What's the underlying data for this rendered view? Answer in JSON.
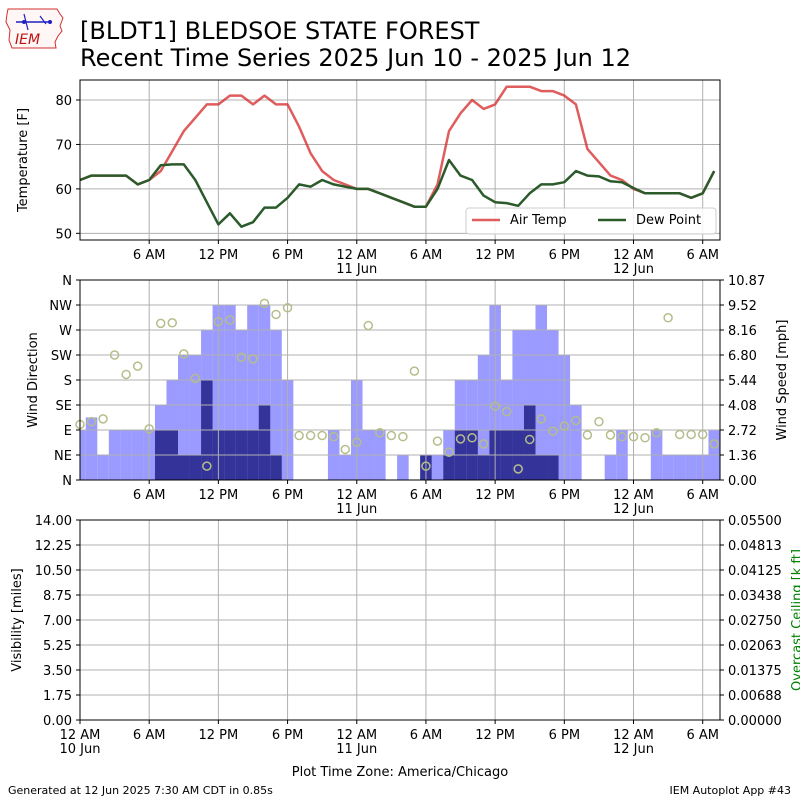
{
  "header": {
    "logo_text": "IEM",
    "title_line1": "[BLDT1] BLEDSOE STATE FOREST",
    "title_line2": "Recent Time Series 2025 Jun 10 - 2025 Jun 12"
  },
  "footer": {
    "generated": "Generated at 12 Jun 2025 7:30 AM CDT in 0.85s",
    "app": "IEM Autoplot App #43"
  },
  "colors": {
    "air_temp": "#d62728",
    "dew_point": "#2b5a2b",
    "wind_speed": "#9a9aff",
    "wind_gust_bar": "#33339a",
    "wind_dir_marker": "#b5bd8a",
    "ceiling_axis": "#008000",
    "grid": "#b0b0b0"
  },
  "chart_data": [
    {
      "type": "line",
      "ylabel": "Temperature [F]",
      "ylim": [
        48.5,
        84.5
      ],
      "yticks": [
        50,
        60,
        70,
        80
      ],
      "xlim": [
        0,
        55.5
      ],
      "xtick_hours": [
        6,
        12,
        18,
        24,
        30,
        36,
        42,
        48,
        54
      ],
      "xtick_labels": [
        "6 AM",
        "12 PM",
        "6 PM",
        "12 AM\n11 Jun",
        "6 AM",
        "12 PM",
        "6 PM",
        "12 AM\n12 Jun",
        "6 AM"
      ],
      "grid": true,
      "legend_position": "lower-right",
      "series": [
        {
          "name": "Air Temp",
          "values": [
            [
              0,
              62
            ],
            [
              1,
              63
            ],
            [
              2,
              63
            ],
            [
              3,
              63
            ],
            [
              4,
              63
            ],
            [
              5,
              61
            ],
            [
              6,
              62
            ],
            [
              7,
              64
            ],
            [
              8,
              68.5
            ],
            [
              9,
              73
            ],
            [
              10,
              76
            ],
            [
              11,
              79
            ],
            [
              12,
              79
            ],
            [
              13,
              81
            ],
            [
              14,
              81
            ],
            [
              15,
              79
            ],
            [
              16,
              81
            ],
            [
              17,
              79
            ],
            [
              18,
              79
            ],
            [
              19,
              74
            ],
            [
              20,
              68
            ],
            [
              21,
              64
            ],
            [
              22,
              62
            ],
            [
              23,
              61
            ],
            [
              24,
              60
            ],
            [
              25,
              60
            ],
            [
              26,
              59
            ],
            [
              27,
              58
            ],
            [
              28,
              57
            ],
            [
              29,
              56
            ],
            [
              30,
              56
            ],
            [
              31,
              61
            ],
            [
              32,
              73
            ],
            [
              33,
              77
            ],
            [
              34,
              80
            ],
            [
              35,
              78
            ],
            [
              36,
              79
            ],
            [
              37,
              83
            ],
            [
              38,
              83
            ],
            [
              39,
              83
            ],
            [
              40,
              82
            ],
            [
              41,
              82
            ],
            [
              42,
              81
            ],
            [
              43,
              79
            ],
            [
              44,
              69
            ],
            [
              45,
              66
            ],
            [
              46,
              63
            ],
            [
              47,
              62
            ],
            [
              48,
              60
            ],
            [
              49,
              59
            ],
            [
              50,
              59
            ],
            [
              51,
              59
            ],
            [
              52,
              59
            ],
            [
              53,
              58
            ],
            [
              54,
              59
            ],
            [
              55,
              64
            ]
          ]
        },
        {
          "name": "Dew Point",
          "values": [
            [
              0,
              62
            ],
            [
              1,
              63
            ],
            [
              2,
              63
            ],
            [
              3,
              63
            ],
            [
              4,
              63
            ],
            [
              5,
              61
            ],
            [
              6,
              62
            ],
            [
              7,
              65.3
            ],
            [
              8,
              65.5
            ],
            [
              9,
              65.5
            ],
            [
              10,
              62
            ],
            [
              11,
              57
            ],
            [
              12,
              52
            ],
            [
              13,
              54.5
            ],
            [
              14,
              51.5
            ],
            [
              15,
              52.5
            ],
            [
              16,
              55.8
            ],
            [
              17,
              55.8
            ],
            [
              18,
              58
            ],
            [
              19,
              61
            ],
            [
              20,
              60.5
            ],
            [
              21,
              62
            ],
            [
              22,
              61
            ],
            [
              23,
              60.5
            ],
            [
              24,
              60
            ],
            [
              25,
              60
            ],
            [
              26,
              59
            ],
            [
              27,
              58
            ],
            [
              28,
              57
            ],
            [
              29,
              56
            ],
            [
              30,
              56
            ],
            [
              31,
              60
            ],
            [
              32,
              66.5
            ],
            [
              33,
              63
            ],
            [
              34,
              62
            ],
            [
              35,
              58.5
            ],
            [
              36,
              57
            ],
            [
              37,
              56.8
            ],
            [
              38,
              56.2
            ],
            [
              39,
              59
            ],
            [
              40,
              61
            ],
            [
              41,
              61
            ],
            [
              42,
              61.5
            ],
            [
              43,
              64
            ],
            [
              44,
              63
            ],
            [
              45,
              62.8
            ],
            [
              46,
              61.7
            ],
            [
              47,
              61.5
            ],
            [
              48,
              60.2
            ],
            [
              49,
              59
            ],
            [
              50,
              59
            ],
            [
              51,
              59
            ],
            [
              52,
              59
            ],
            [
              53,
              58
            ],
            [
              54,
              59
            ],
            [
              55,
              64
            ]
          ]
        }
      ]
    },
    {
      "type": "bar",
      "ylabel": "Wind Direction",
      "y2label": "Wind Speed [mph]",
      "direction_ticks": [
        "N",
        "NE",
        "E",
        "SE",
        "S",
        "SW",
        "W",
        "NW",
        "N"
      ],
      "speed_ticks": [
        "0.00",
        "1.36",
        "2.72",
        "4.08",
        "5.44",
        "6.80",
        "8.16",
        "9.52",
        "10.87"
      ],
      "speed_max": 10.87,
      "xlim": [
        0,
        55.5
      ],
      "xtick_hours": [
        6,
        12,
        18,
        24,
        30,
        36,
        42,
        48,
        54
      ],
      "xtick_labels": [
        "6 AM",
        "12 PM",
        "6 PM",
        "12 AM\n11 Jun",
        "6 AM",
        "12 PM",
        "6 PM",
        "12 AM\n12 Jun",
        "6 AM"
      ],
      "grid": true,
      "series": [
        {
          "name": "Wind Speed",
          "values": [
            [
              0,
              2.72
            ],
            [
              1,
              3.4
            ],
            [
              2,
              1.36
            ],
            [
              3,
              2.72
            ],
            [
              4,
              2.72
            ],
            [
              5,
              2.72
            ],
            [
              6,
              2.72
            ],
            [
              7,
              4.08
            ],
            [
              8,
              5.44
            ],
            [
              9,
              6.8
            ],
            [
              10,
              6.8
            ],
            [
              11,
              8.16
            ],
            [
              12,
              9.52
            ],
            [
              13,
              9.52
            ],
            [
              14,
              8.16
            ],
            [
              15,
              9.52
            ],
            [
              16,
              9.52
            ],
            [
              17,
              8.16
            ],
            [
              18,
              5.44
            ],
            [
              19,
              0
            ],
            [
              20,
              0
            ],
            [
              21,
              0
            ],
            [
              22,
              2.72
            ],
            [
              23,
              1.36
            ],
            [
              24,
              5.44
            ],
            [
              25,
              2.72
            ],
            [
              26,
              2.72
            ],
            [
              27,
              0
            ],
            [
              28,
              1.36
            ],
            [
              29,
              0
            ],
            [
              30,
              1.36
            ],
            [
              31,
              1.36
            ],
            [
              32,
              2.72
            ],
            [
              33,
              5.44
            ],
            [
              34,
              5.44
            ],
            [
              35,
              6.8
            ],
            [
              36,
              9.52
            ],
            [
              37,
              5.44
            ],
            [
              38,
              8.16
            ],
            [
              39,
              8.16
            ],
            [
              40,
              9.52
            ],
            [
              41,
              8.16
            ],
            [
              42,
              6.8
            ],
            [
              43,
              4.08
            ],
            [
              44,
              0
            ],
            [
              45,
              0
            ],
            [
              46,
              1.36
            ],
            [
              47,
              2.72
            ],
            [
              48,
              0
            ],
            [
              49,
              0
            ],
            [
              50,
              2.72
            ],
            [
              51,
              1.36
            ],
            [
              52,
              1.36
            ],
            [
              53,
              1.36
            ],
            [
              54,
              1.36
            ],
            [
              55,
              2.72
            ]
          ]
        },
        {
          "name": "Wind Gust",
          "values": [
            [
              7,
              2.72
            ],
            [
              8,
              2.72
            ],
            [
              9,
              1.36
            ],
            [
              10,
              1.36
            ],
            [
              11,
              5.44
            ],
            [
              12,
              2.72
            ],
            [
              13,
              2.72
            ],
            [
              14,
              2.72
            ],
            [
              15,
              2.72
            ],
            [
              16,
              4.08
            ],
            [
              17,
              1.36
            ],
            [
              30,
              1.36
            ],
            [
              32,
              1.36
            ],
            [
              33,
              2.72
            ],
            [
              34,
              2.72
            ],
            [
              35,
              1.36
            ],
            [
              36,
              2.72
            ],
            [
              37,
              2.72
            ],
            [
              38,
              2.72
            ],
            [
              39,
              4.08
            ],
            [
              40,
              1.36
            ],
            [
              41,
              1.36
            ]
          ]
        },
        {
          "name": "Wind Direction",
          "values": [
            [
              0,
              100
            ],
            [
              1,
              105
            ],
            [
              2,
              110
            ],
            [
              3,
              225
            ],
            [
              4,
              190
            ],
            [
              5,
              205
            ],
            [
              6,
              92
            ],
            [
              7,
              282
            ],
            [
              8,
              283
            ],
            [
              9,
              227
            ],
            [
              10,
              183
            ],
            [
              11,
              25
            ],
            [
              12,
              285
            ],
            [
              13,
              288
            ],
            [
              14,
              221
            ],
            [
              15,
              218
            ],
            [
              16,
              318
            ],
            [
              17,
              298
            ],
            [
              18,
              310
            ],
            [
              19,
              80
            ],
            [
              20,
              80
            ],
            [
              21,
              80
            ],
            [
              22,
              78
            ],
            [
              23,
              55
            ],
            [
              24,
              68
            ],
            [
              25,
              278
            ],
            [
              26,
              85
            ],
            [
              27,
              80
            ],
            [
              28,
              78
            ],
            [
              29,
              196
            ],
            [
              30,
              25
            ],
            [
              31,
              70
            ],
            [
              32,
              50
            ],
            [
              33,
              74
            ],
            [
              34,
              76
            ],
            [
              35,
              65
            ],
            [
              36,
              133
            ],
            [
              37,
              123
            ],
            [
              38,
              20
            ],
            [
              39,
              73
            ],
            [
              40,
              110
            ],
            [
              41,
              88
            ],
            [
              42,
              97
            ],
            [
              43,
              107
            ],
            [
              44,
              81
            ],
            [
              45,
              105
            ],
            [
              46,
              81
            ],
            [
              47,
              78
            ],
            [
              48,
              78
            ],
            [
              49,
              76
            ],
            [
              50,
              85
            ],
            [
              51,
              292
            ],
            [
              52,
              82
            ],
            [
              53,
              82
            ],
            [
              54,
              82
            ],
            [
              55,
              65
            ]
          ]
        }
      ]
    },
    {
      "type": "line",
      "ylabel": "Visibility [miles]",
      "y2label": "Overcast Ceiling [k ft]",
      "yticks": [
        "0.00",
        "1.75",
        "3.50",
        "5.25",
        "7.00",
        "8.75",
        "10.50",
        "12.25",
        "14.00"
      ],
      "y2ticks": [
        "0.00000",
        "0.00688",
        "0.01375",
        "0.02063",
        "0.02750",
        "0.03438",
        "0.04125",
        "0.04813",
        "0.05500"
      ],
      "ylim": [
        0,
        14
      ],
      "xlim": [
        0,
        55.5
      ],
      "xtick_hours": [
        0,
        6,
        12,
        18,
        24,
        30,
        36,
        42,
        48,
        54
      ],
      "xtick_labels": [
        "12 AM\n10 Jun",
        "6 AM",
        "12 PM",
        "6 PM",
        "12 AM\n11 Jun",
        "6 AM",
        "12 PM",
        "6 PM",
        "12 AM\n12 Jun",
        "6 AM"
      ],
      "xlabel": "Plot Time Zone: America/Chicago",
      "grid": true,
      "series": []
    }
  ]
}
